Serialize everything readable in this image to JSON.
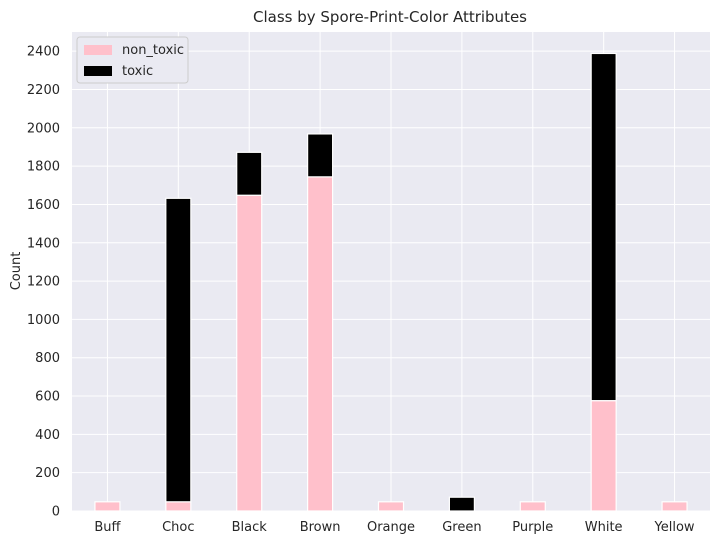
{
  "chart_data": {
    "type": "bar",
    "stacked": true,
    "title": "Class by Spore-Print-Color Attributes",
    "xlabel": "",
    "ylabel": "Count",
    "categories": [
      "Buff",
      "Choc",
      "Black",
      "Brown",
      "Orange",
      "Green",
      "Purple",
      "White",
      "Yellow"
    ],
    "series": [
      {
        "name": "non_toxic",
        "color": "#ffc0cb",
        "values": [
          48,
          48,
          1648,
          1744,
          48,
          0,
          48,
          576,
          48
        ]
      },
      {
        "name": "toxic",
        "color": "#000000",
        "values": [
          0,
          1584,
          224,
          224,
          0,
          72,
          0,
          1812,
          0
        ]
      }
    ],
    "ylim": [
      0,
      2500
    ],
    "yticks": [
      0,
      200,
      400,
      600,
      800,
      1000,
      1200,
      1400,
      1600,
      1800,
      2000,
      2200,
      2400
    ],
    "grid": true,
    "legend_position": "top-left"
  }
}
